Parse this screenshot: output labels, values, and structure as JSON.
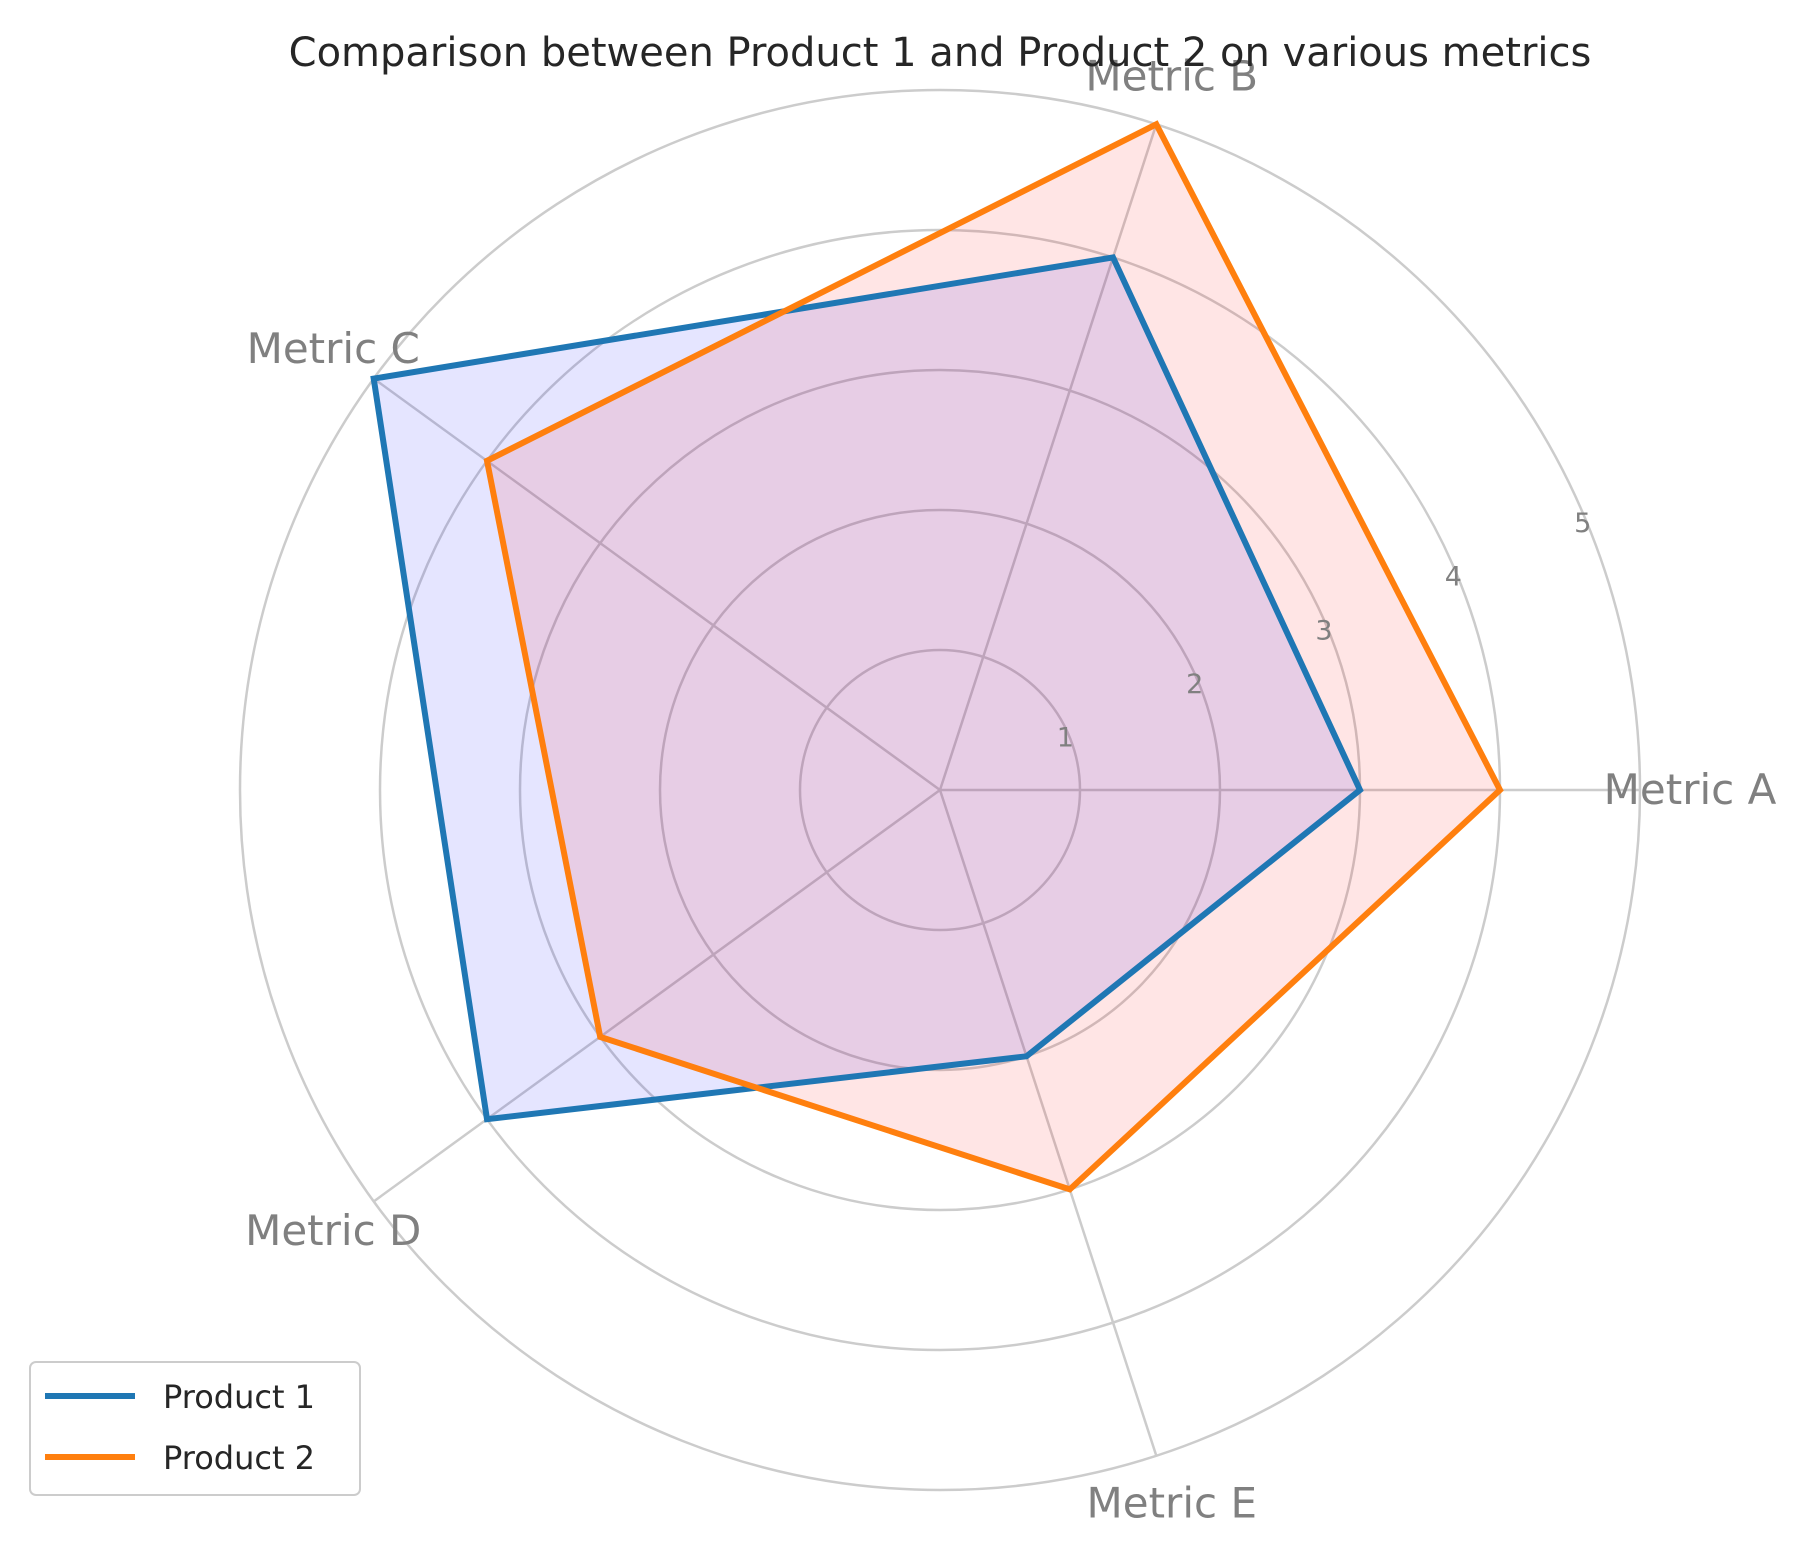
{
  "chart_data": {
    "type": "radar",
    "title": "Comparison between Product 1 and Product 2 on various metrics",
    "categories": [
      "Metric A",
      "Metric B",
      "Metric C",
      "Metric D",
      "Metric E"
    ],
    "rlim": [
      0,
      5
    ],
    "rticks": [
      "1",
      "2",
      "3",
      "4",
      "5"
    ],
    "grid": true,
    "legend_position": "lower-left",
    "series": [
      {
        "name": "Product 1",
        "values": [
          3,
          4,
          5,
          4,
          2
        ],
        "line_color": "#1f77b4",
        "fill_color": "#0000ff"
      },
      {
        "name": "Product 2",
        "values": [
          4,
          5,
          4,
          3,
          3
        ],
        "line_color": "#ff7f0e",
        "fill_color": "#ff0000"
      }
    ]
  }
}
